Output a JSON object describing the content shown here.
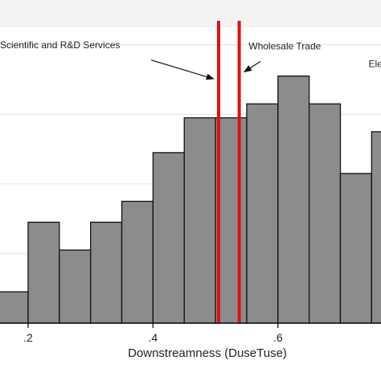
{
  "chart_data": {
    "type": "bar",
    "orientation": "vertical",
    "xlabel": "Downstreamness (DuseTuse)",
    "x_ticks": [
      {
        "value": 0.2,
        "label": ".2"
      },
      {
        "value": 0.4,
        "label": ".4"
      },
      {
        "value": 0.6,
        "label": ".6"
      }
    ],
    "x_range": [
      0.155,
      0.765
    ],
    "y_range": [
      0,
      4.25
    ],
    "y_gridlines": [
      1,
      2,
      3,
      4
    ],
    "grid": true,
    "bin_width": 0.05,
    "bins": [
      {
        "x0": 0.15,
        "x1": 0.2,
        "value": 0.45
      },
      {
        "x0": 0.2,
        "x1": 0.25,
        "value": 1.45
      },
      {
        "x0": 0.25,
        "x1": 0.3,
        "value": 1.05
      },
      {
        "x0": 0.3,
        "x1": 0.35,
        "value": 1.45
      },
      {
        "x0": 0.35,
        "x1": 0.4,
        "value": 1.75
      },
      {
        "x0": 0.4,
        "x1": 0.45,
        "value": 2.45
      },
      {
        "x0": 0.45,
        "x1": 0.5,
        "value": 2.95
      },
      {
        "x0": 0.5,
        "x1": 0.55,
        "value": 2.95
      },
      {
        "x0": 0.55,
        "x1": 0.6,
        "value": 3.15
      },
      {
        "x0": 0.6,
        "x1": 0.65,
        "value": 3.55
      },
      {
        "x0": 0.65,
        "x1": 0.7,
        "value": 3.15
      },
      {
        "x0": 0.7,
        "x1": 0.75,
        "value": 2.15
      },
      {
        "x0": 0.75,
        "x1": 0.8,
        "value": 2.75
      }
    ],
    "reference_lines": [
      {
        "x": 0.505,
        "color": "#dd1111"
      },
      {
        "x": 0.538,
        "color": "#dd1111"
      }
    ],
    "annotations": [
      {
        "text": "Scientific and R&D Services",
        "x": 0.155,
        "y": 3.95,
        "arrow_from": [
          0.397,
          3.78
        ],
        "arrow_to": [
          0.497,
          3.51
        ]
      },
      {
        "text": "Wholesale Trade",
        "x": 0.553,
        "y": 3.93,
        "arrow_from": [
          0.572,
          3.76
        ],
        "arrow_to": [
          0.546,
          3.61
        ]
      },
      {
        "text": "Elec",
        "x": 0.745,
        "y": 3.68
      }
    ],
    "colors": {
      "bar_fill": "#8c8c8c",
      "bar_stroke": "#111111",
      "grid": "#e6e6e6",
      "axis": "#111111"
    }
  }
}
